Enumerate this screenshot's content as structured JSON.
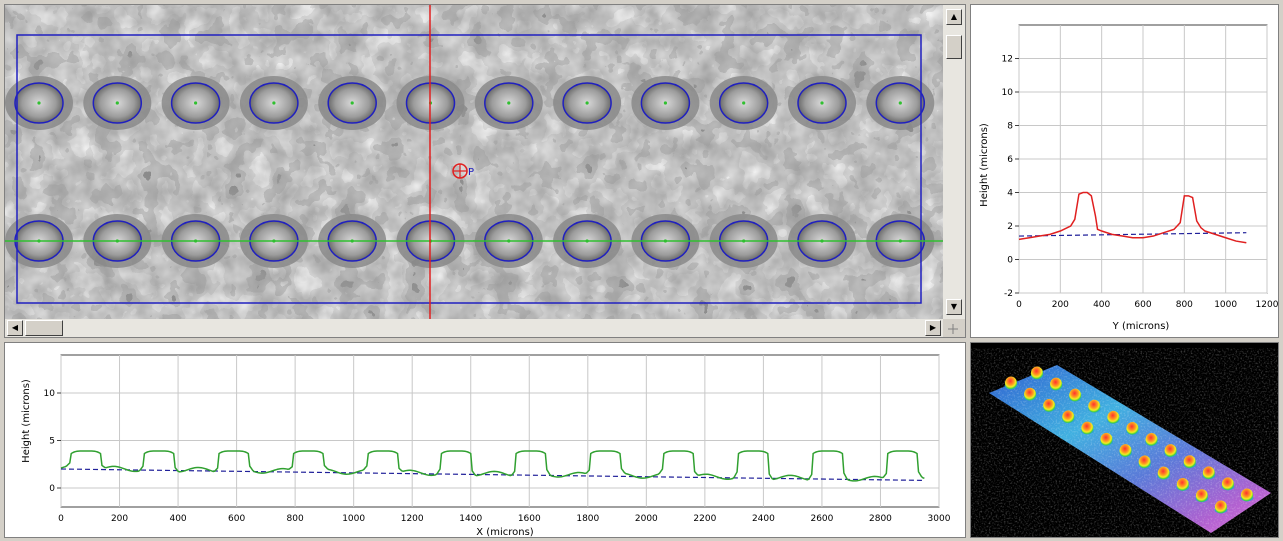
{
  "image_view": {
    "overlay_colors": {
      "roi": "#2020c0",
      "circles": "#2020c0",
      "centers": "#30c030",
      "h_line": "#30c030",
      "v_line": "#e02020",
      "marker": "#e02020"
    },
    "marker_label": "P"
  },
  "y_profile": {
    "ylabel": "Height (microns)",
    "xlabel": "Y (microns)",
    "xlim": [
      0,
      1200
    ],
    "ylim": [
      -2,
      14
    ],
    "x_ticks": [
      "0",
      "200",
      "400",
      "600",
      "800",
      "1000",
      "1200"
    ],
    "y_ticks": [
      "-2",
      "0",
      "2",
      "4",
      "6",
      "8",
      "10",
      "12"
    ],
    "line_color": "#e02020",
    "baseline_color": "#20209a"
  },
  "x_profile": {
    "ylabel": "Height (microns)",
    "xlabel": "X (microns)",
    "xlim": [
      0,
      3000
    ],
    "ylim": [
      -2,
      14
    ],
    "x_ticks": [
      "0",
      "200",
      "400",
      "600",
      "800",
      "1000",
      "1200",
      "1400",
      "1600",
      "1800",
      "2000",
      "2200",
      "2400",
      "2600",
      "2800",
      "3000"
    ],
    "y_ticks": [
      "0",
      "5",
      "10"
    ],
    "line_color": "#30a030",
    "baseline_color": "#20209a"
  },
  "chart_data": [
    {
      "type": "line",
      "title": "",
      "xlabel": "Y (microns)",
      "ylabel": "Height (microns)",
      "xlim": [
        0,
        1200
      ],
      "ylim": [
        -2,
        14
      ],
      "grid": true,
      "series": [
        {
          "values_x": [
            0,
            50,
            100,
            150,
            200,
            250,
            270,
            290,
            310,
            330,
            350,
            370,
            380,
            400,
            450,
            500,
            550,
            600,
            650,
            700,
            750,
            780,
            800,
            820,
            840,
            860,
            880,
            900,
            950,
            1000,
            1050,
            1100
          ],
          "values_y": [
            1.2,
            1.3,
            1.4,
            1.5,
            1.7,
            2.0,
            2.4,
            3.9,
            4.0,
            4.0,
            3.8,
            2.6,
            1.8,
            1.7,
            1.5,
            1.4,
            1.3,
            1.3,
            1.4,
            1.6,
            1.8,
            2.2,
            3.8,
            3.8,
            3.7,
            2.3,
            1.9,
            1.7,
            1.5,
            1.3,
            1.1,
            1.0
          ]
        },
        {
          "values_x": [
            0,
            1100
          ],
          "values_y": [
            1.4,
            1.6
          ]
        }
      ]
    },
    {
      "type": "line",
      "title": "",
      "xlabel": "X (microns)",
      "ylabel": "Height (microns)",
      "xlim": [
        0,
        3000
      ],
      "ylim": [
        -2,
        14
      ],
      "grid": true,
      "bump_centers": [
        85,
        335,
        590,
        845,
        1100,
        1350,
        1605,
        1860,
        2110,
        2365,
        2620,
        2875
      ],
      "bump_height": 3.9,
      "bump_width": 110,
      "base_start": 2.1,
      "base_end": 0.9,
      "baseline": {
        "values_x": [
          0,
          2950
        ],
        "values_y": [
          2.0,
          0.8
        ]
      }
    }
  ]
}
